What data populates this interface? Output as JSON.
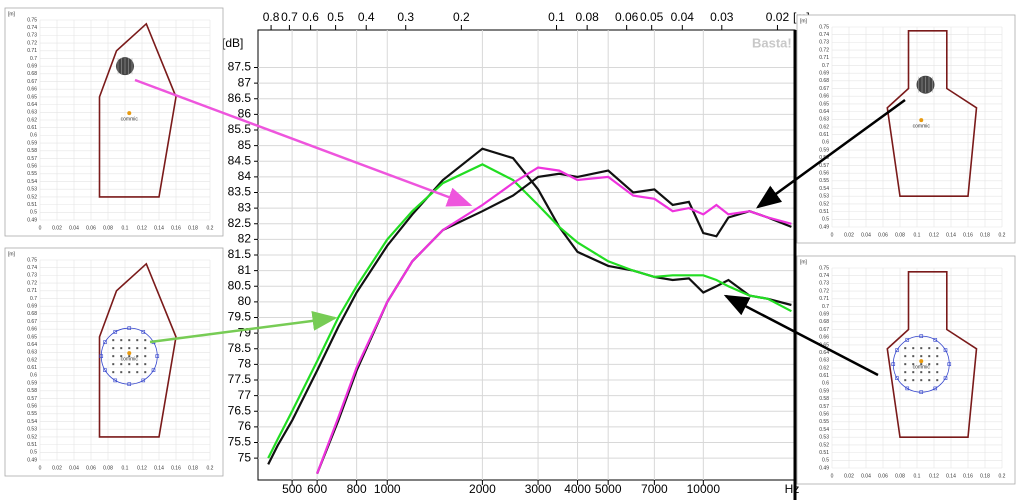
{
  "chart_data": {
    "type": "line",
    "y_label": "[dB]",
    "x_unit": "Hz",
    "x2_unit": "[m]",
    "watermark": "Basta!",
    "xscale": "log",
    "xlim": [
      390,
      19500
    ],
    "xticks": [
      500,
      600,
      800,
      1000,
      2000,
      3000,
      4000,
      5000,
      7000,
      10000
    ],
    "x2lim": [
      0.88,
      0.0176
    ],
    "x2ticks": [
      0.8,
      0.7,
      0.6,
      0.5,
      0.4,
      0.3,
      0.2,
      0.1,
      0.08,
      0.06,
      0.05,
      0.04,
      0.03,
      0.02
    ],
    "ylim": [
      74.3,
      88.7
    ],
    "yticks": [
      75,
      75.5,
      76,
      76.5,
      77,
      77.5,
      78,
      78.5,
      79,
      79.5,
      80,
      80.5,
      81,
      81.5,
      82,
      82.5,
      83,
      83.5,
      84,
      84.5,
      85,
      85.5,
      86,
      86.5,
      87,
      87.5
    ],
    "grid": true,
    "x": [
      420,
      450,
      500,
      600,
      700,
      800,
      1000,
      1200,
      1500,
      2000,
      2500,
      3000,
      3500,
      4000,
      5000,
      6000,
      7000,
      8000,
      9000,
      10000,
      11000,
      12000,
      14000,
      16000,
      19000
    ],
    "series": [
      {
        "color": "#111111",
        "values": [
          74.8,
          75.4,
          76.2,
          77.8,
          79.2,
          80.3,
          81.8,
          82.8,
          83.9,
          84.9,
          84.6,
          83.6,
          82.4,
          81.6,
          81.15,
          81.0,
          80.8,
          80.7,
          80.75,
          80.3,
          80.5,
          80.7,
          80.2,
          80.1,
          79.9
        ]
      },
      {
        "color": "#22dd22",
        "values": [
          75.0,
          75.6,
          76.5,
          78.1,
          79.5,
          80.5,
          82.0,
          82.9,
          83.8,
          84.4,
          83.9,
          83.1,
          82.4,
          81.9,
          81.3,
          81.0,
          80.8,
          80.85,
          80.85,
          80.85,
          80.7,
          80.5,
          80.2,
          80.1,
          79.7
        ]
      },
      {
        "color": "#111111",
        "values": [
          null,
          null,
          null,
          74.5,
          76.2,
          77.8,
          80.0,
          81.3,
          82.3,
          82.9,
          83.4,
          84.0,
          84.1,
          84.0,
          84.2,
          83.5,
          83.6,
          83.1,
          83.2,
          82.2,
          82.1,
          82.7,
          82.9,
          82.7,
          82.4
        ]
      },
      {
        "color": "#ee33dd",
        "values": [
          null,
          null,
          null,
          74.5,
          76.3,
          77.9,
          80.0,
          81.3,
          82.3,
          83.1,
          83.8,
          84.3,
          84.2,
          83.9,
          84.0,
          83.4,
          83.3,
          82.9,
          83.0,
          82.8,
          83.1,
          82.8,
          82.9,
          82.7,
          82.5
        ]
      }
    ]
  },
  "inset_axes": {
    "unit": "[m]",
    "xticks": [
      0,
      0.02,
      0.04,
      0.06,
      0.08,
      0.1,
      0.12,
      0.14,
      0.16,
      0.18,
      0.2
    ],
    "yticks": [
      0.49,
      0.5,
      0.51,
      0.52,
      0.53,
      0.54,
      0.55,
      0.56,
      0.57,
      0.58,
      0.59,
      0.6,
      0.61,
      0.62,
      0.63,
      0.64,
      0.65,
      0.66,
      0.67,
      0.68,
      0.69,
      0.7,
      0.71,
      0.72,
      0.73,
      0.74,
      0.75
    ],
    "mic_label": "commic"
  }
}
